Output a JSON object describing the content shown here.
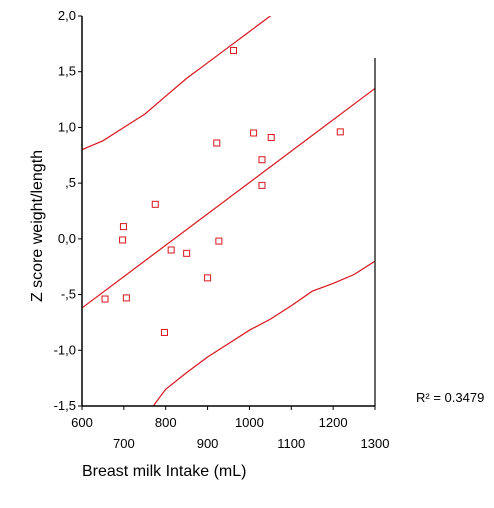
{
  "chart_data": {
    "type": "scatter",
    "xlabel": "Breast milk Intake (mL)",
    "ylabel": "Z score weight/length",
    "xlim": [
      600,
      1300
    ],
    "ylim": [
      -1.5,
      2.0
    ],
    "x_ticks": [
      {
        "value": 600,
        "label": "600"
      },
      {
        "value": 700,
        "label": "700"
      },
      {
        "value": 800,
        "label": "800"
      },
      {
        "value": 900,
        "label": "900"
      },
      {
        "value": 1000,
        "label": "1000"
      },
      {
        "value": 1100,
        "label": "1100"
      },
      {
        "value": 1200,
        "label": "1200"
      },
      {
        "value": 1300,
        "label": "1300"
      }
    ],
    "y_ticks": [
      {
        "value": -1.5,
        "label": "-1,5"
      },
      {
        "value": -1.0,
        "label": "-1,0"
      },
      {
        "value": -0.5,
        "label": "-,5"
      },
      {
        "value": 0.0,
        "label": "0,0"
      },
      {
        "value": 0.5,
        "label": ",5"
      },
      {
        "value": 1.0,
        "label": "1,0"
      },
      {
        "value": 1.5,
        "label": "1,5"
      },
      {
        "value": 2.0,
        "label": "2,0"
      }
    ],
    "points": [
      {
        "x": 655,
        "y": -0.54
      },
      {
        "x": 697,
        "y": -0.01
      },
      {
        "x": 699,
        "y": 0.11
      },
      {
        "x": 706,
        "y": -0.53
      },
      {
        "x": 775,
        "y": 0.31
      },
      {
        "x": 797,
        "y": -0.84
      },
      {
        "x": 813,
        "y": -0.1
      },
      {
        "x": 850,
        "y": -0.13
      },
      {
        "x": 900,
        "y": -0.35
      },
      {
        "x": 922,
        "y": 0.86
      },
      {
        "x": 927,
        "y": -0.02
      },
      {
        "x": 962,
        "y": 1.69
      },
      {
        "x": 1010,
        "y": 0.95
      },
      {
        "x": 1030,
        "y": 0.71
      },
      {
        "x": 1030,
        "y": 0.48
      },
      {
        "x": 1052,
        "y": 0.91
      },
      {
        "x": 1217,
        "y": 0.96
      }
    ],
    "fit_line": {
      "x": [
        600,
        1300
      ],
      "y": [
        -0.62,
        1.35
      ]
    },
    "confidence_upper": {
      "x": [
        600,
        650,
        700,
        750,
        800,
        850,
        900,
        950,
        1000,
        1050
      ],
      "y": [
        0.8,
        0.88,
        1.0,
        1.12,
        1.28,
        1.44,
        1.58,
        1.72,
        1.86,
        2.0
      ]
    },
    "confidence_lower": {
      "x": [
        770,
        800,
        850,
        900,
        950,
        1000,
        1050,
        1100,
        1150,
        1200,
        1250,
        1300
      ],
      "y": [
        -1.5,
        -1.35,
        -1.2,
        -1.06,
        -0.94,
        -0.82,
        -0.72,
        -0.6,
        -0.47,
        -0.4,
        -0.32,
        -0.2
      ]
    },
    "r_squared_label": "R² = 0.3479",
    "marker": "open-square",
    "colors": {
      "points": "#d9141b",
      "lines": "#d9141b",
      "axes": "#000000"
    }
  }
}
